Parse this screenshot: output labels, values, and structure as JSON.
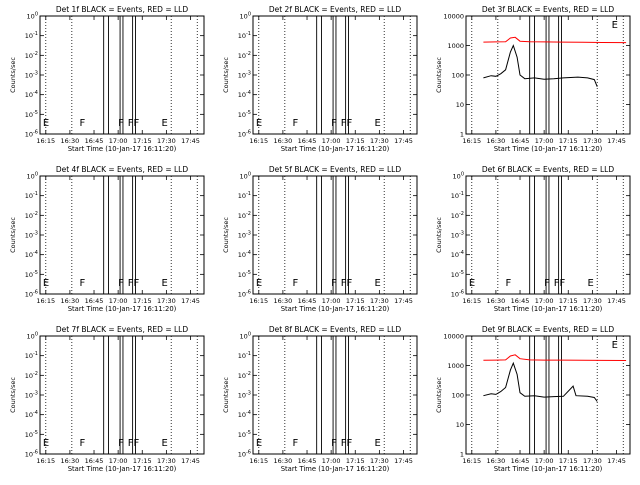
{
  "chart_data": [
    {
      "det": "1f",
      "title": "Det 1f BLACK = Events, RED = LLD",
      "type": "line",
      "scale": "log",
      "yticks": [
        "10^0",
        "10^-1",
        "10^-2",
        "10^-3",
        "10^-4",
        "10^-5",
        "10^-6"
      ],
      "ylabel": "Counts/sec",
      "xlabel": "Start Time (10-Jan-17 16:11:20)",
      "xticks": [
        "16:15",
        "16:30",
        "16:45",
        "17:00",
        "17:15",
        "17:30",
        "17:45"
      ],
      "has_data": false,
      "series": []
    },
    {
      "det": "2f",
      "title": "Det 2f BLACK = Events, RED = LLD",
      "type": "line",
      "scale": "log",
      "yticks": [
        "10^0",
        "10^-1",
        "10^-2",
        "10^-3",
        "10^-4",
        "10^-5",
        "10^-6"
      ],
      "ylabel": "Counts/sec",
      "xlabel": "Start Time (10-Jan-17 16:11:20)",
      "xticks": [
        "16:15",
        "16:30",
        "16:45",
        "17:00",
        "17:15",
        "17:30",
        "17:45"
      ],
      "has_data": false,
      "series": []
    },
    {
      "det": "3f",
      "title": "Det 3f BLACK = Events, RED = LLD",
      "type": "line",
      "scale": "log",
      "yticks": [
        "1",
        "10",
        "100",
        "1000",
        "10000"
      ],
      "ylabel": "Counts/sec",
      "xlabel": "Start Time (10-Jan-17 16:11:20)",
      "xticks": [
        "16:15",
        "16:30",
        "16:45",
        "17:00",
        "17:15",
        "17:30",
        "17:45"
      ],
      "has_data": true,
      "series": [
        {
          "color": "#ff0000",
          "points": [
            [
              16.37,
              1300
            ],
            [
              16.5,
              1320
            ],
            [
              16.6,
              1330
            ],
            [
              16.65,
              1800
            ],
            [
              16.7,
              1900
            ],
            [
              16.75,
              1400
            ],
            [
              16.85,
              1350
            ],
            [
              17.0,
              1320
            ],
            [
              17.2,
              1300
            ],
            [
              17.4,
              1280
            ],
            [
              17.6,
              1260
            ],
            [
              17.85,
              1250
            ]
          ]
        },
        {
          "color": "#000000",
          "points": [
            [
              16.37,
              80
            ],
            [
              16.45,
              95
            ],
            [
              16.5,
              90
            ],
            [
              16.55,
              110
            ],
            [
              16.6,
              150
            ],
            [
              16.65,
              600
            ],
            [
              16.68,
              1000
            ],
            [
              16.72,
              400
            ],
            [
              16.75,
              100
            ],
            [
              16.8,
              75
            ],
            [
              16.9,
              80
            ],
            [
              17.0,
              72
            ],
            [
              17.1,
              75
            ],
            [
              17.2,
              80
            ],
            [
              17.35,
              85
            ],
            [
              17.45,
              80
            ],
            [
              17.52,
              70
            ],
            [
              17.55,
              40
            ]
          ]
        }
      ]
    },
    {
      "det": "4f",
      "title": "Det 4f BLACK = Events, RED = LLD",
      "type": "line",
      "scale": "log",
      "yticks": [
        "10^0",
        "10^-1",
        "10^-2",
        "10^-3",
        "10^-4",
        "10^-5",
        "10^-6"
      ],
      "ylabel": "Counts/sec",
      "xlabel": "Start Time (10-Jan-17 16:11:20)",
      "xticks": [
        "16:15",
        "16:30",
        "16:45",
        "17:00",
        "17:15",
        "17:30",
        "17:45"
      ],
      "has_data": false,
      "series": []
    },
    {
      "det": "5f",
      "title": "Det 5f BLACK = Events, RED = LLD",
      "type": "line",
      "scale": "log",
      "yticks": [
        "10^0",
        "10^-1",
        "10^-2",
        "10^-3",
        "10^-4",
        "10^-5",
        "10^-6"
      ],
      "ylabel": "Counts/sec",
      "xlabel": "Start Time (10-Jan-17 16:11:20)",
      "xticks": [
        "16:15",
        "16:30",
        "16:45",
        "17:00",
        "17:15",
        "17:30",
        "17:45"
      ],
      "has_data": false,
      "series": []
    },
    {
      "det": "6f",
      "title": "Det 6f BLACK = Events, RED = LLD",
      "type": "line",
      "scale": "log",
      "yticks": [
        "10^0",
        "10^-1",
        "10^-2",
        "10^-3",
        "10^-4",
        "10^-5",
        "10^-6"
      ],
      "ylabel": "Counts/sec",
      "xlabel": "Start Time (10-Jan-17 16:11:20)",
      "xticks": [
        "16:15",
        "16:30",
        "16:45",
        "17:00",
        "17:15",
        "17:30",
        "17:45"
      ],
      "has_data": false,
      "series": []
    },
    {
      "det": "7f",
      "title": "Det 7f BLACK = Events, RED = LLD",
      "type": "line",
      "scale": "log",
      "yticks": [
        "10^0",
        "10^-1",
        "10^-2",
        "10^-3",
        "10^-4",
        "10^-5",
        "10^-6"
      ],
      "ylabel": "Counts/sec",
      "xlabel": "Start Time (10-Jan-17 16:11:20)",
      "xticks": [
        "16:15",
        "16:30",
        "16:45",
        "17:00",
        "17:15",
        "17:30",
        "17:45"
      ],
      "has_data": false,
      "series": []
    },
    {
      "det": "8f",
      "title": "Det 8f BLACK = Events, RED = LLD",
      "type": "line",
      "scale": "log",
      "yticks": [
        "10^0",
        "10^-1",
        "10^-2",
        "10^-3",
        "10^-4",
        "10^-5",
        "10^-6"
      ],
      "ylabel": "Counts/sec",
      "xlabel": "Start Time (10-Jan-17 16:11:20)",
      "xticks": [
        "16:15",
        "16:30",
        "16:45",
        "17:00",
        "17:15",
        "17:30",
        "17:45"
      ],
      "has_data": false,
      "series": []
    },
    {
      "det": "9f",
      "title": "Det 9f BLACK = Events, RED = LLD",
      "type": "line",
      "scale": "log",
      "yticks": [
        "1",
        "10",
        "100",
        "1000",
        "10000"
      ],
      "ylabel": "Counts/sec",
      "xlabel": "Start Time (10-Jan-17 16:11:20)",
      "xticks": [
        "16:15",
        "16:30",
        "16:45",
        "17:00",
        "17:15",
        "17:30",
        "17:45"
      ],
      "has_data": true,
      "series": [
        {
          "color": "#ff0000",
          "points": [
            [
              16.37,
              1500
            ],
            [
              16.5,
              1520
            ],
            [
              16.6,
              1550
            ],
            [
              16.65,
              2100
            ],
            [
              16.7,
              2300
            ],
            [
              16.75,
              1700
            ],
            [
              16.85,
              1550
            ],
            [
              17.0,
              1530
            ],
            [
              17.2,
              1520
            ],
            [
              17.4,
              1500
            ],
            [
              17.6,
              1490
            ],
            [
              17.85,
              1480
            ]
          ]
        },
        {
          "color": "#000000",
          "points": [
            [
              16.37,
              95
            ],
            [
              16.45,
              110
            ],
            [
              16.5,
              105
            ],
            [
              16.55,
              130
            ],
            [
              16.6,
              180
            ],
            [
              16.65,
              700
            ],
            [
              16.68,
              1200
            ],
            [
              16.72,
              500
            ],
            [
              16.75,
              120
            ],
            [
              16.8,
              90
            ],
            [
              16.9,
              95
            ],
            [
              17.0,
              85
            ],
            [
              17.1,
              88
            ],
            [
              17.2,
              90
            ],
            [
              17.3,
              200
            ],
            [
              17.33,
              95
            ],
            [
              17.45,
              90
            ],
            [
              17.52,
              82
            ],
            [
              17.55,
              60
            ]
          ]
        }
      ]
    }
  ],
  "annotations": {
    "solid_lines": [
      16.85,
      16.9,
      17.02,
      17.05,
      17.15,
      17.18
    ],
    "dotted_lines": [
      16.25,
      16.52,
      17.55,
      17.82
    ],
    "letters": [
      {
        "text": "E",
        "x": 16.22
      },
      {
        "text": "F",
        "x": 16.6
      },
      {
        "text": "F",
        "x": 17.0
      },
      {
        "text": "FF",
        "x": 17.1
      },
      {
        "text": "E",
        "x": 17.45
      }
    ]
  }
}
